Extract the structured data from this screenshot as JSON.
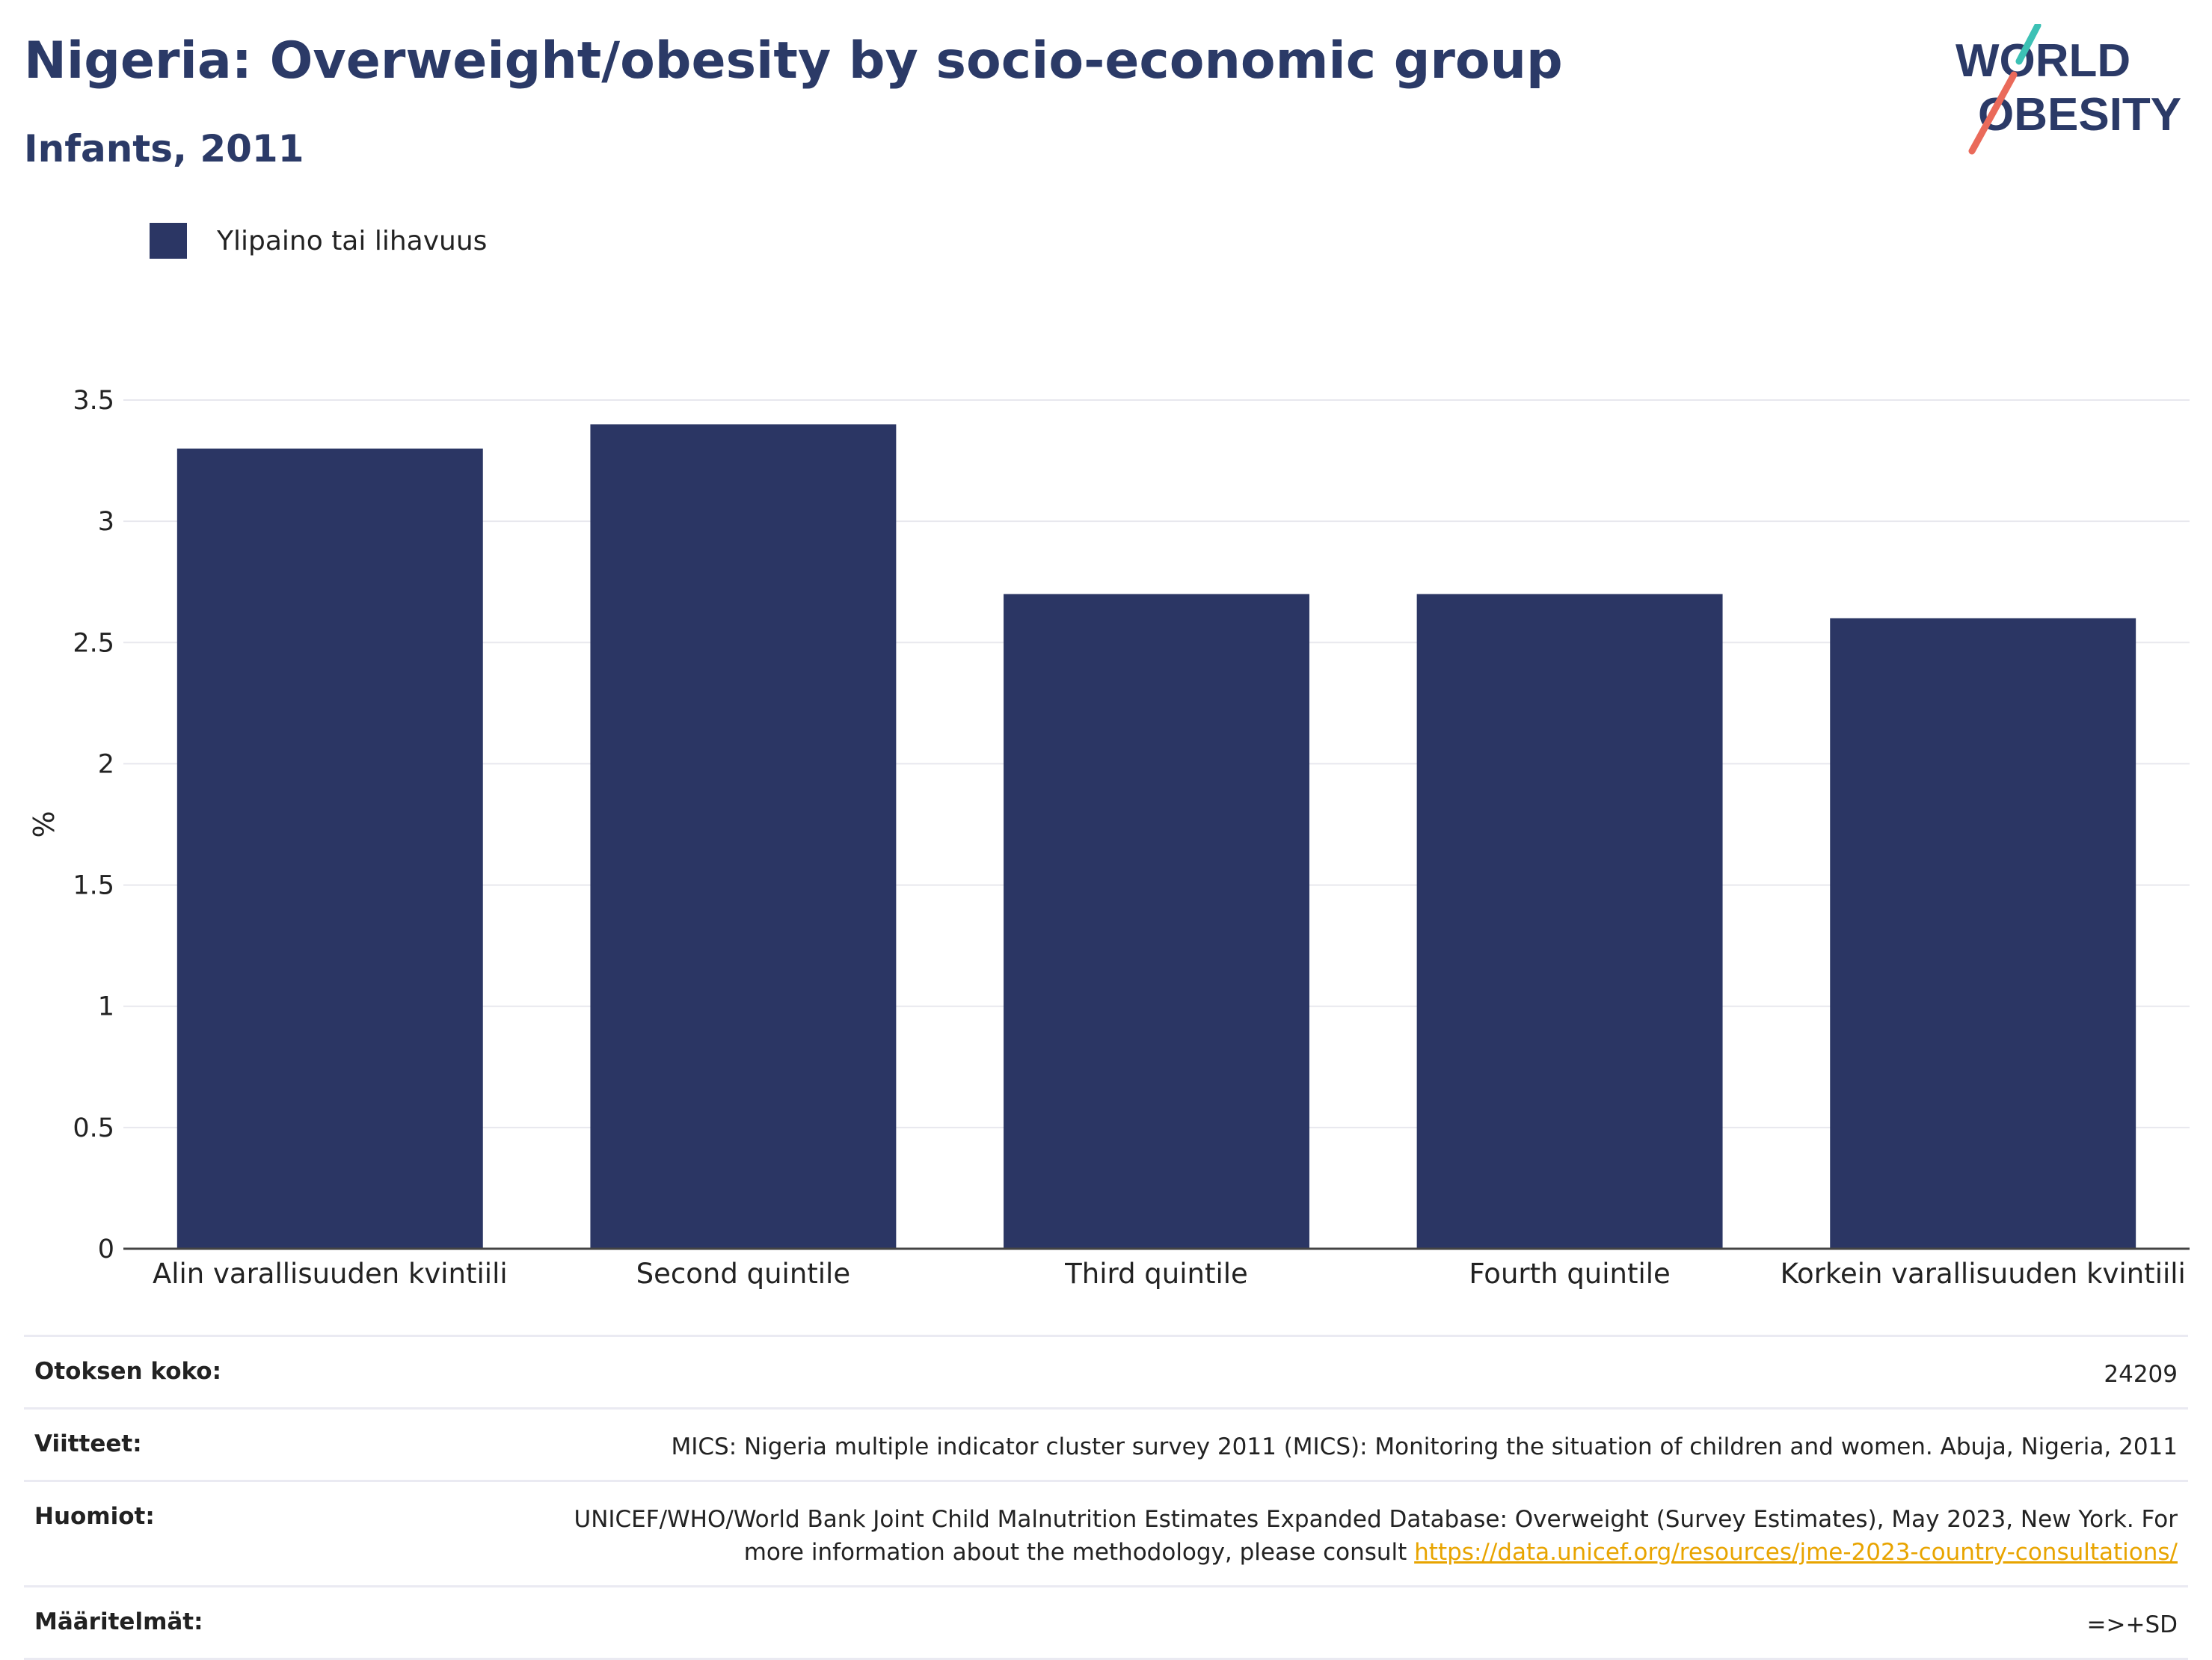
{
  "header": {
    "title": "Nigeria: Overweight/obesity by socio-economic group",
    "subtitle": "Infants, 2011"
  },
  "logo": {
    "line1": "WORLD",
    "line2": "OBESITY"
  },
  "legend": {
    "label": "Ylipaino tai lihavuus"
  },
  "colors": {
    "bar": "#2b3664",
    "title": "#2b3a67",
    "link": "#e8a400",
    "grid": "#e8e8ee"
  },
  "chart_data": {
    "type": "bar",
    "categories": [
      "Alin varallisuuden kvintiili",
      "Second quintile",
      "Third quintile",
      "Fourth quintile",
      "Korkein varallisuuden kvintiili"
    ],
    "series": [
      {
        "name": "Ylipaino tai lihavuus",
        "values": [
          3.3,
          3.4,
          2.7,
          2.7,
          2.6
        ]
      }
    ],
    "ylabel": "%",
    "ylim": [
      0,
      3.5
    ],
    "yticks": [
      0,
      0.5,
      1,
      1.5,
      2,
      2.5,
      3,
      3.5
    ],
    "ytick_labels": [
      "0",
      "0.5",
      "1",
      "1.5",
      "2",
      "2.5",
      "3",
      "3.5"
    ],
    "grid": true
  },
  "footer": {
    "sample_label": "Otoksen koko:",
    "sample_value": "24209",
    "refs_label": "Viitteet:",
    "refs_value": "MICS: Nigeria multiple indicator cluster survey 2011 (MICS): Monitoring the situation of children and women. Abuja, Nigeria, 2011",
    "notes_label": "Huomiot:",
    "notes_value": "UNICEF/WHO/World Bank Joint Child Malnutrition Estimates Expanded Database: Overweight (Survey Estimates), May 2023, New York. For more information about the methodology, please consult ",
    "notes_link": "https://data.unicef.org/resources/jme-2023-country-consultations/",
    "defs_label": "Määritelmät:",
    "defs_value": "=>+SD"
  }
}
